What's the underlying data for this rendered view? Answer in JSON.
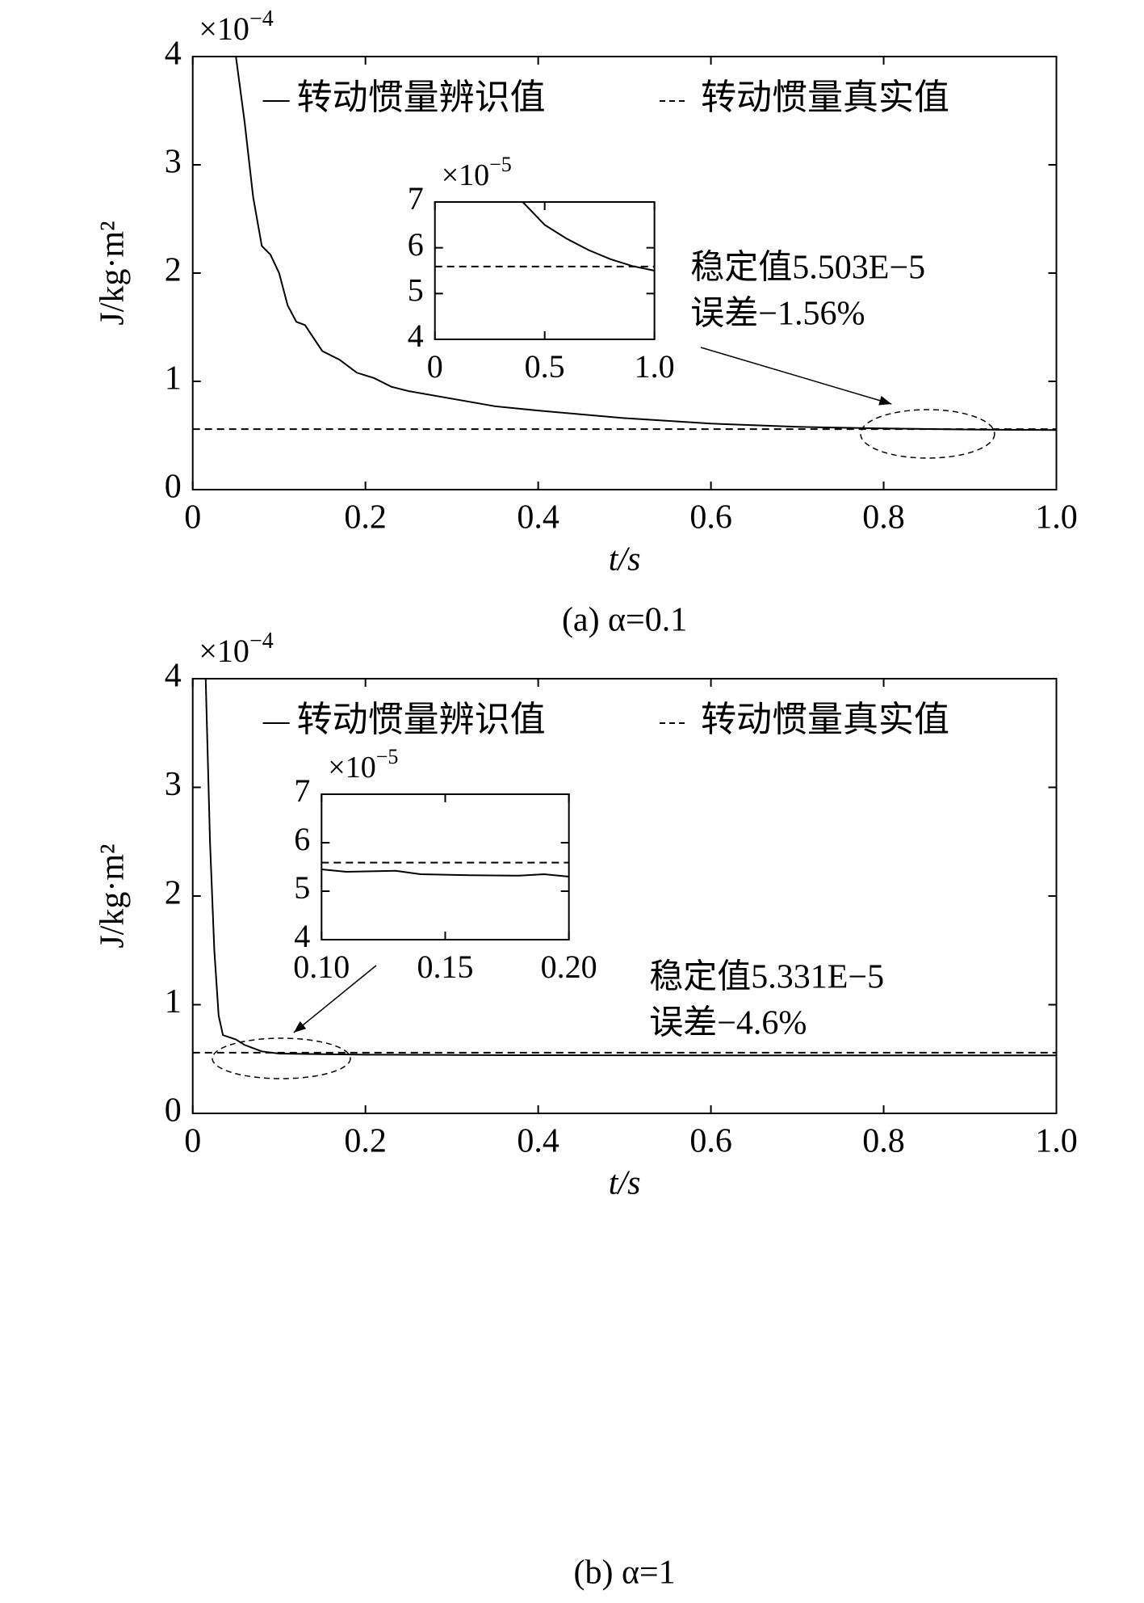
{
  "chart_data": [
    {
      "type": "line",
      "caption": "(a) α=0.1",
      "xlabel": "t/s",
      "ylabel": "J/kg·m²",
      "y_multiplier": "×10",
      "y_exponent": "−4",
      "xlim": [
        0,
        1
      ],
      "ylim": [
        0,
        4
      ],
      "xticks": [
        0,
        0.2,
        0.4,
        0.6,
        0.8,
        {
          "value": 1,
          "label": "1.0"
        }
      ],
      "yticks": [
        0,
        1,
        2,
        3,
        4
      ],
      "series": [
        {
          "name": "转动惯量辨识值",
          "color": "#000000",
          "style": "solid",
          "x": [
            0.05,
            0.06,
            0.07,
            0.08,
            0.09,
            0.1,
            0.11,
            0.12,
            0.13,
            0.14,
            0.15,
            0.17,
            0.19,
            0.21,
            0.23,
            0.25,
            0.3,
            0.35,
            0.4,
            0.5,
            0.6,
            0.7,
            0.8,
            0.9,
            1.0
          ],
          "values": [
            4.0,
            3.4,
            2.7,
            2.25,
            2.17,
            2.0,
            1.7,
            1.55,
            1.52,
            1.4,
            1.28,
            1.2,
            1.08,
            1.03,
            0.95,
            0.91,
            0.84,
            0.77,
            0.73,
            0.66,
            0.61,
            0.58,
            0.565,
            0.555,
            0.55
          ]
        },
        {
          "name": "转动惯量真实值",
          "color": "#000000",
          "style": "dashed",
          "x": [
            0,
            1
          ],
          "values": [
            0.559,
            0.559
          ]
        }
      ],
      "annotation": [
        "稳定值5.503E−5",
        "误差−1.56%"
      ]
    },
    {
      "type": "line",
      "y_multiplier": "×10",
      "y_exponent": "−5",
      "xlim": [
        0,
        1
      ],
      "ylim": [
        4,
        7
      ],
      "xticks": [
        0,
        0.5,
        {
          "value": 1,
          "label": "1.0"
        }
      ],
      "yticks": [
        4,
        5,
        6,
        7
      ],
      "series": [
        {
          "color": "#000000",
          "style": "solid",
          "x": [
            0.4,
            0.5,
            0.6,
            0.7,
            0.8,
            0.9,
            1.0
          ],
          "values": [
            7.0,
            6.5,
            6.2,
            5.95,
            5.75,
            5.6,
            5.5
          ]
        },
        {
          "color": "#000000",
          "style": "dashed",
          "x": [
            0,
            1
          ],
          "values": [
            5.59,
            5.59
          ]
        }
      ]
    },
    {
      "type": "line",
      "caption": "(b) α=1",
      "xlabel": "t/s",
      "ylabel": "J/kg·m²",
      "y_multiplier": "×10",
      "y_exponent": "−4",
      "xlim": [
        0,
        1
      ],
      "ylim": [
        0,
        4
      ],
      "xticks": [
        0,
        0.2,
        0.4,
        0.6,
        0.8,
        {
          "value": 1,
          "label": "1.0"
        }
      ],
      "yticks": [
        0,
        1,
        2,
        3,
        4
      ],
      "series": [
        {
          "name": "转动惯量辨识值",
          "color": "#000000",
          "style": "solid",
          "x": [
            0.015,
            0.02,
            0.025,
            0.03,
            0.035,
            0.05,
            0.06,
            0.08,
            0.1,
            0.2,
            0.4,
            0.6,
            0.8,
            1.0
          ],
          "values": [
            4.0,
            2.5,
            1.5,
            0.9,
            0.72,
            0.68,
            0.63,
            0.57,
            0.55,
            0.54,
            0.535,
            0.533,
            0.533,
            0.533
          ]
        },
        {
          "name": "转动惯量真实值",
          "color": "#000000",
          "style": "dashed",
          "x": [
            0,
            1
          ],
          "values": [
            0.559,
            0.559
          ]
        }
      ],
      "annotation": [
        "稳定值5.331E−5",
        "误差−4.6%"
      ]
    },
    {
      "type": "line",
      "y_multiplier": "×10",
      "y_exponent": "−5",
      "xlim": [
        0.1,
        0.2
      ],
      "ylim": [
        4,
        7
      ],
      "xticks": [
        {
          "value": 0.1,
          "label": "0.10"
        },
        {
          "value": 0.15,
          "label": "0.15"
        },
        {
          "value": 0.2,
          "label": "0.20"
        }
      ],
      "yticks": [
        4,
        5,
        6,
        7
      ],
      "series": [
        {
          "color": "#000000",
          "style": "solid",
          "x": [
            0.1,
            0.11,
            0.13,
            0.14,
            0.16,
            0.18,
            0.19,
            0.2
          ],
          "values": [
            5.45,
            5.4,
            5.42,
            5.35,
            5.33,
            5.32,
            5.35,
            5.3
          ]
        },
        {
          "color": "#000000",
          "style": "dashed",
          "x": [
            0.1,
            0.2
          ],
          "values": [
            5.59,
            5.59
          ]
        }
      ]
    }
  ]
}
